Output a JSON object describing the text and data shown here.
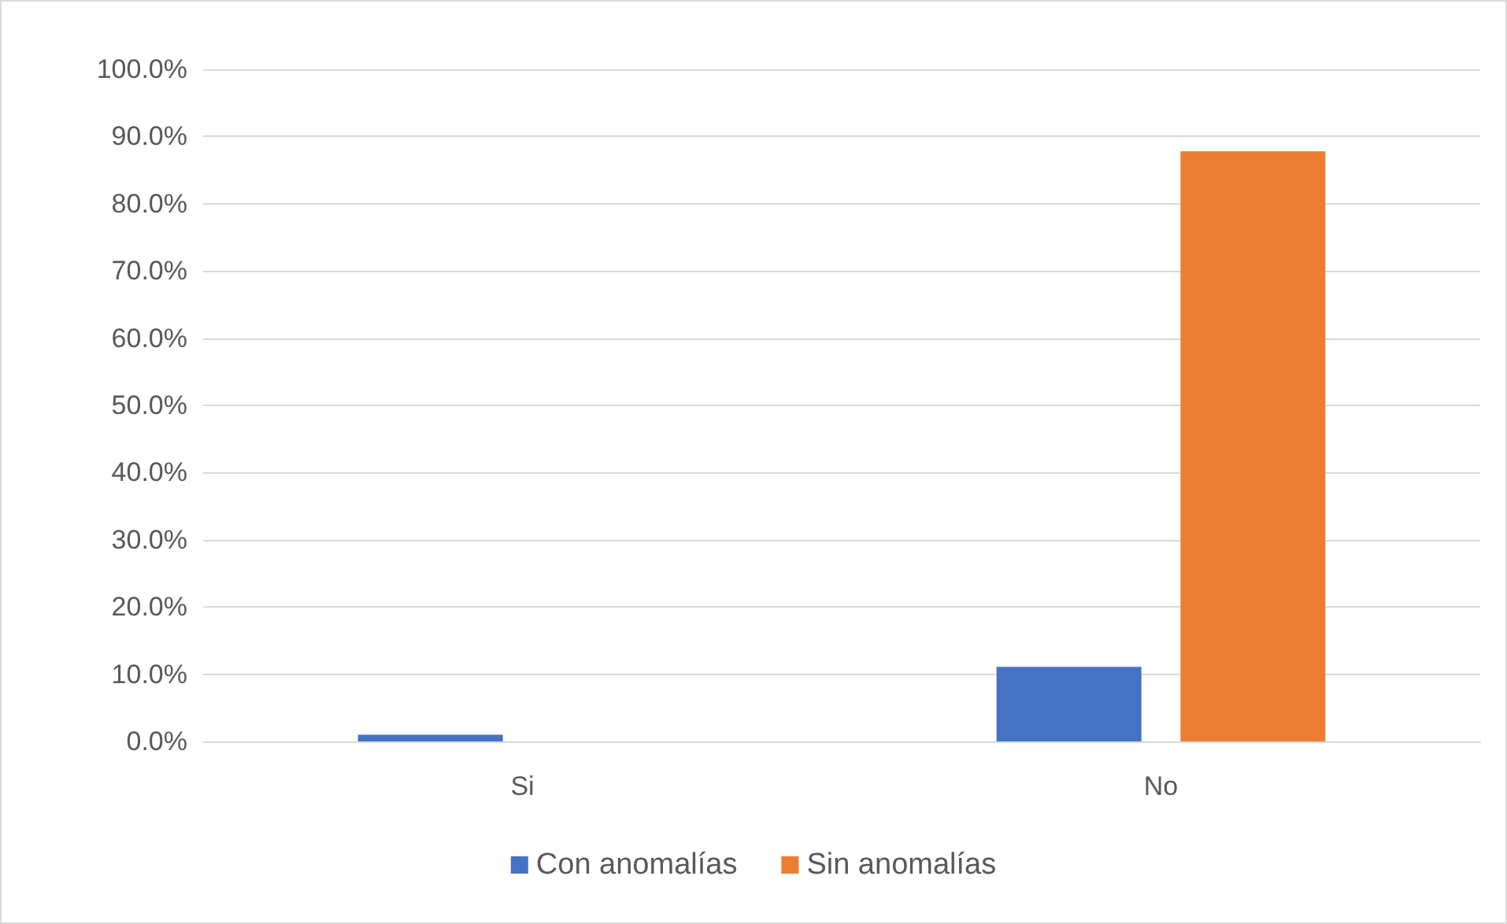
{
  "chart_data": {
    "type": "bar",
    "categories": [
      "Si",
      "No"
    ],
    "series": [
      {
        "name": "Con anomalías",
        "color": "#4472c4",
        "values": [
          1.0,
          11.1
        ]
      },
      {
        "name": "Sin anomalías",
        "color": "#ed7d31",
        "values": [
          0,
          87.8
        ]
      }
    ],
    "ylim": [
      0,
      100
    ],
    "yticks": [
      {
        "value": 0,
        "label": "0.0%"
      },
      {
        "value": 10,
        "label": "10.0%"
      },
      {
        "value": 20,
        "label": "20.0%"
      },
      {
        "value": 30,
        "label": "30.0%"
      },
      {
        "value": 40,
        "label": "40.0%"
      },
      {
        "value": 50,
        "label": "50.0%"
      },
      {
        "value": 60,
        "label": "60.0%"
      },
      {
        "value": 70,
        "label": "70.0%"
      },
      {
        "value": 80,
        "label": "80.0%"
      },
      {
        "value": 90,
        "label": "90.0%"
      },
      {
        "value": 100,
        "label": "100.0%"
      }
    ],
    "grid": "y",
    "legend": "bottom"
  }
}
